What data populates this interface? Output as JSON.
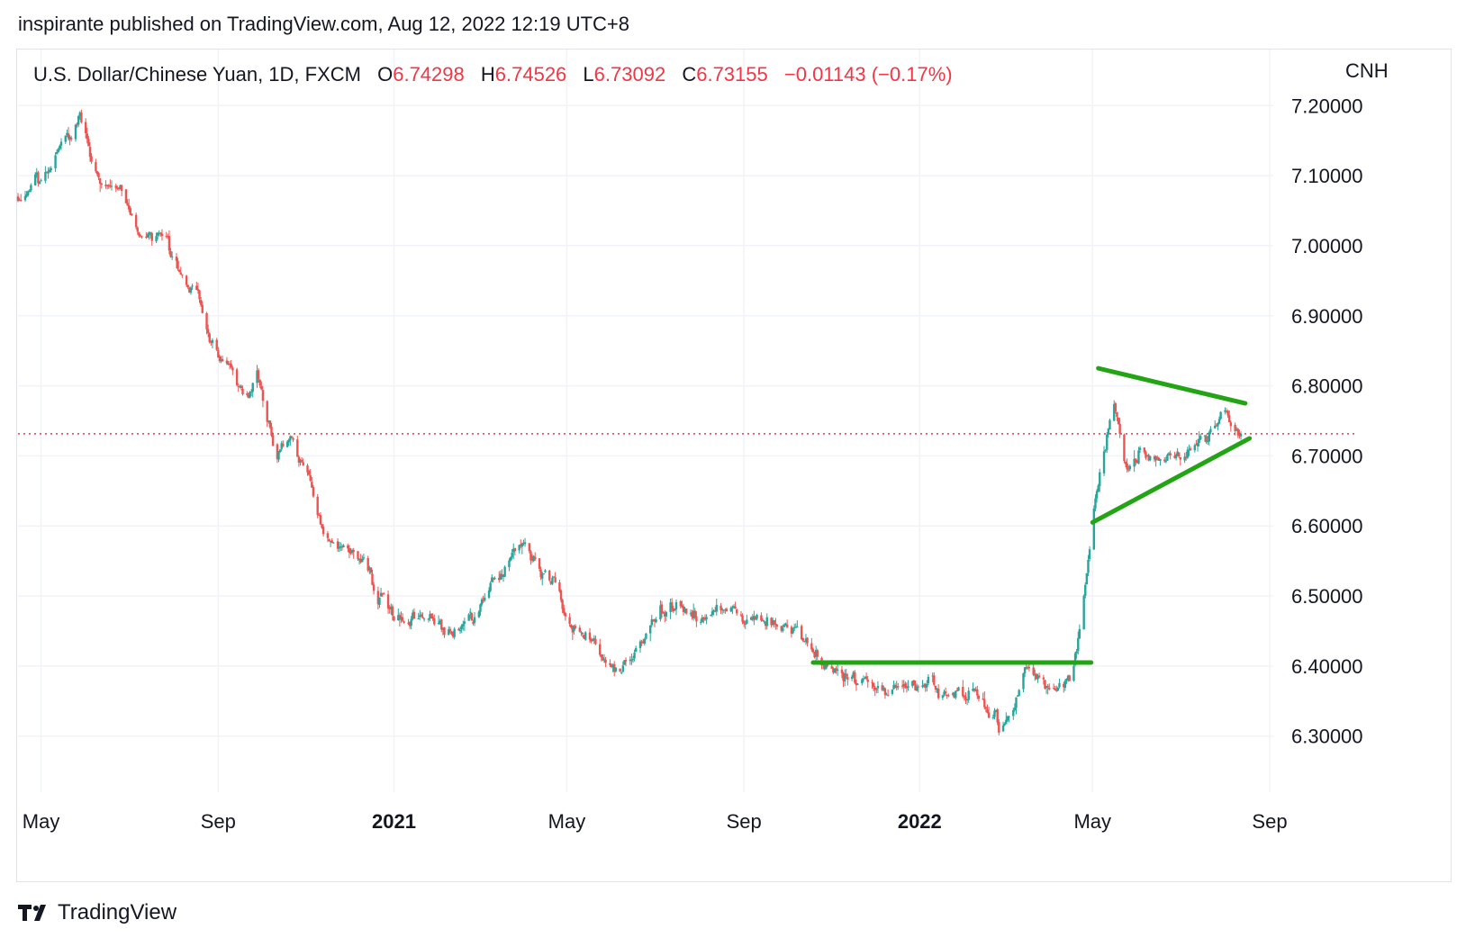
{
  "publisher_line": "inspirante published on TradingView.com, Aug 12, 2022 12:19 UTC+8",
  "legend": {
    "symbol": "U.S. Dollar/Chinese Yuan, 1D, FXCM",
    "open_label": "O",
    "open": "6.74298",
    "high_label": "H",
    "high": "6.74526",
    "low_label": "L",
    "low": "6.73092",
    "close_label": "C",
    "close": "6.73155",
    "change": "−0.01143 (−0.17%)"
  },
  "currency": "CNH",
  "brand": {
    "name": "TradingView",
    "logo": "tradingview-logo-icon"
  },
  "colors": {
    "up": "#26a69a",
    "down": "#ef5350",
    "trendline": "#22a414",
    "price_line": "#f23645",
    "grid": "#f0f3fa",
    "text": "#131722"
  },
  "chart_data": {
    "type": "candlestick",
    "timeframe": "1D",
    "x_range": [
      "2020-04-15",
      "2022-09-01"
    ],
    "ylim": [
      6.22,
      7.28
    ],
    "y_ticks": [
      7.2,
      7.1,
      7.0,
      6.9,
      6.8,
      6.7,
      6.6,
      6.5,
      6.4,
      6.3
    ],
    "y_tick_labels": [
      "7.20000",
      "7.10000",
      "7.00000",
      "6.90000",
      "6.80000",
      "6.70000",
      "6.60000",
      "6.50000",
      "6.40000",
      "6.30000"
    ],
    "x_ticks": [
      {
        "date": "2020-05-01",
        "label": "May",
        "bold": false
      },
      {
        "date": "2020-09-01",
        "label": "Sep",
        "bold": false
      },
      {
        "date": "2021-01-01",
        "label": "2021",
        "bold": true
      },
      {
        "date": "2021-05-01",
        "label": "May",
        "bold": false
      },
      {
        "date": "2021-09-01",
        "label": "Sep",
        "bold": false
      },
      {
        "date": "2022-01-01",
        "label": "2022",
        "bold": true
      },
      {
        "date": "2022-05-01",
        "label": "May",
        "bold": false
      },
      {
        "date": "2022-09-01",
        "label": "Sep",
        "bold": false
      }
    ],
    "last_close": 6.73155,
    "price_path": [
      [
        "2020-04-15",
        7.07
      ],
      [
        "2020-05-01",
        7.1
      ],
      [
        "2020-05-15",
        7.14
      ],
      [
        "2020-05-28",
        7.18
      ],
      [
        "2020-06-10",
        7.09
      ],
      [
        "2020-06-25",
        7.08
      ],
      [
        "2020-07-10",
        7.0
      ],
      [
        "2020-07-25",
        7.02
      ],
      [
        "2020-08-05",
        6.97
      ],
      [
        "2020-08-20",
        6.92
      ],
      [
        "2020-09-01",
        6.84
      ],
      [
        "2020-09-10",
        6.83
      ],
      [
        "2020-09-20",
        6.78
      ],
      [
        "2020-09-28",
        6.82
      ],
      [
        "2020-10-12",
        6.7
      ],
      [
        "2020-10-20",
        6.72
      ],
      [
        "2020-11-01",
        6.68
      ],
      [
        "2020-11-15",
        6.58
      ],
      [
        "2020-12-01",
        6.56
      ],
      [
        "2020-12-15",
        6.53
      ],
      [
        "2021-01-01",
        6.46
      ],
      [
        "2021-01-20",
        6.47
      ],
      [
        "2021-02-05",
        6.45
      ],
      [
        "2021-02-20",
        6.46
      ],
      [
        "2021-03-10",
        6.52
      ],
      [
        "2021-04-01",
        6.57
      ],
      [
        "2021-04-20",
        6.52
      ],
      [
        "2021-05-05",
        6.46
      ],
      [
        "2021-05-20",
        6.43
      ],
      [
        "2021-06-01",
        6.39
      ],
      [
        "2021-06-20",
        6.43
      ],
      [
        "2021-07-05",
        6.48
      ],
      [
        "2021-07-25",
        6.48
      ],
      [
        "2021-08-10",
        6.48
      ],
      [
        "2021-08-25",
        6.48
      ],
      [
        "2021-09-10",
        6.46
      ],
      [
        "2021-09-25",
        6.47
      ],
      [
        "2021-10-10",
        6.45
      ],
      [
        "2021-10-25",
        6.4
      ],
      [
        "2021-11-10",
        6.39
      ],
      [
        "2021-11-25",
        6.38
      ],
      [
        "2021-12-10",
        6.37
      ],
      [
        "2021-12-25",
        6.37
      ],
      [
        "2022-01-10",
        6.37
      ],
      [
        "2022-01-25",
        6.36
      ],
      [
        "2022-02-10",
        6.36
      ],
      [
        "2022-02-25",
        6.32
      ],
      [
        "2022-03-05",
        6.32
      ],
      [
        "2022-03-15",
        6.39
      ],
      [
        "2022-04-01",
        6.37
      ],
      [
        "2022-04-15",
        6.38
      ],
      [
        "2022-04-22",
        6.45
      ],
      [
        "2022-05-01",
        6.61
      ],
      [
        "2022-05-08",
        6.7
      ],
      [
        "2022-05-16",
        6.78
      ],
      [
        "2022-05-25",
        6.68
      ],
      [
        "2022-06-05",
        6.71
      ],
      [
        "2022-06-20",
        6.69
      ],
      [
        "2022-07-05",
        6.7
      ],
      [
        "2022-07-20",
        6.73
      ],
      [
        "2022-08-01",
        6.76
      ],
      [
        "2022-08-12",
        6.73
      ]
    ],
    "candle_amplitude": 0.018,
    "seed": 11,
    "trendlines": [
      {
        "name": "support-line",
        "points": [
          [
            "2021-10-19",
            6.405
          ],
          [
            "2022-04-30",
            6.405
          ]
        ]
      },
      {
        "name": "triangle-upper-line",
        "points": [
          [
            "2022-05-05",
            6.825
          ],
          [
            "2022-08-15",
            6.775
          ]
        ]
      },
      {
        "name": "triangle-lower-line",
        "points": [
          [
            "2022-05-01",
            6.605
          ],
          [
            "2022-08-18",
            6.725
          ]
        ]
      }
    ]
  }
}
